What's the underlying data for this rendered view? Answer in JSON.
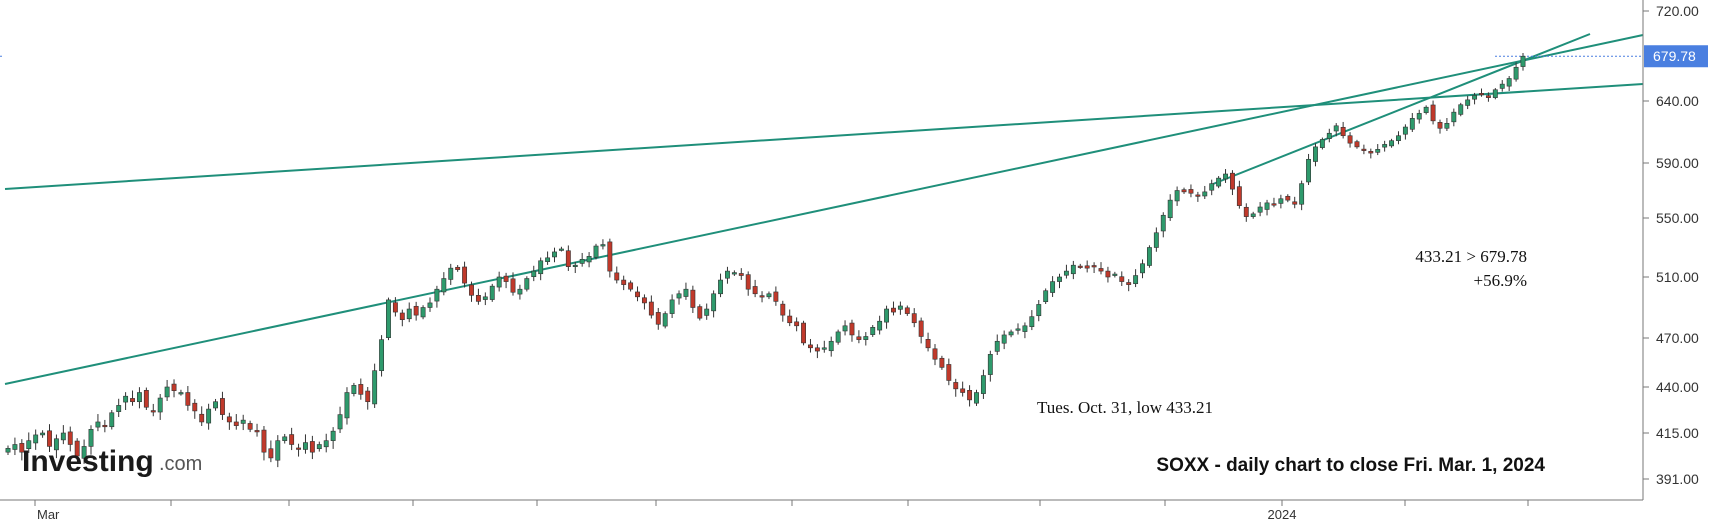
{
  "logo": {
    "brand": "Investing",
    "suffix": ".com"
  },
  "annotations": {
    "low_label": "Tues. Oct. 31, low 433.21",
    "change_line1": "433.21 > 679.78",
    "change_line2": "+56.9%"
  },
  "colors": {
    "up": "#2e9a6c",
    "down": "#c0392b",
    "trendline": "#1f8f7a",
    "price_tag": "#4a7fe0",
    "axis": "#777777"
  },
  "chart_data": {
    "type": "candlestick",
    "subtitle": "SOXX - daily chart to close Fri. Mar. 1, 2024",
    "ylim": [
      385,
      730
    ],
    "y_ticks": [
      "720.00",
      "679.78",
      "640.00",
      "590.00",
      "550.00",
      "510.00",
      "470.00",
      "440.00",
      "415.00",
      "391.00"
    ],
    "x_labels": [
      "Mar",
      "2024"
    ],
    "last_price": "679.78",
    "series_close": [
      407,
      409,
      405,
      411,
      414,
      415,
      408,
      412,
      415,
      409,
      403,
      408,
      417,
      421,
      419,
      426,
      430,
      435,
      432,
      437,
      429,
      427,
      434,
      440,
      438,
      437,
      430,
      427,
      421,
      428,
      432,
      425,
      421,
      419,
      422,
      417,
      416,
      405,
      402,
      411,
      413,
      409,
      407,
      410,
      405,
      409,
      411,
      416,
      425,
      437,
      441,
      436,
      432,
      450,
      469,
      495,
      487,
      482,
      489,
      485,
      490,
      493,
      502,
      509,
      516,
      515,
      506,
      498,
      494,
      497,
      504,
      510,
      507,
      500,
      502,
      509,
      514,
      521,
      523,
      527,
      529,
      517,
      518,
      522,
      524,
      531,
      532,
      514,
      508,
      505,
      502,
      497,
      493,
      485,
      479,
      486,
      495,
      499,
      502,
      490,
      483,
      489,
      499,
      508,
      514,
      513,
      511,
      502,
      499,
      497,
      499,
      494,
      485,
      480,
      478,
      467,
      464,
      462,
      464,
      468,
      474,
      478,
      472,
      469,
      471,
      477,
      481,
      489,
      487,
      491,
      486,
      480,
      471,
      464,
      457,
      452,
      444,
      439,
      437,
      433,
      437,
      447,
      460,
      468,
      472,
      474,
      476,
      478,
      484,
      492,
      501,
      507,
      510,
      514,
      518,
      517,
      516,
      517,
      514,
      510,
      512,
      507,
      505,
      511,
      519,
      530,
      540,
      552,
      563,
      570,
      569,
      568,
      566,
      569,
      575,
      579,
      582,
      571,
      559,
      551,
      553,
      558,
      561,
      560,
      564,
      563,
      560,
      575,
      593,
      603,
      609,
      614,
      620,
      612,
      606,
      603,
      600,
      598,
      601,
      605,
      608,
      612,
      619,
      626,
      630,
      635,
      624,
      618,
      622,
      631,
      637,
      641,
      645,
      646,
      643,
      650,
      655,
      660,
      670,
      679.78
    ]
  }
}
